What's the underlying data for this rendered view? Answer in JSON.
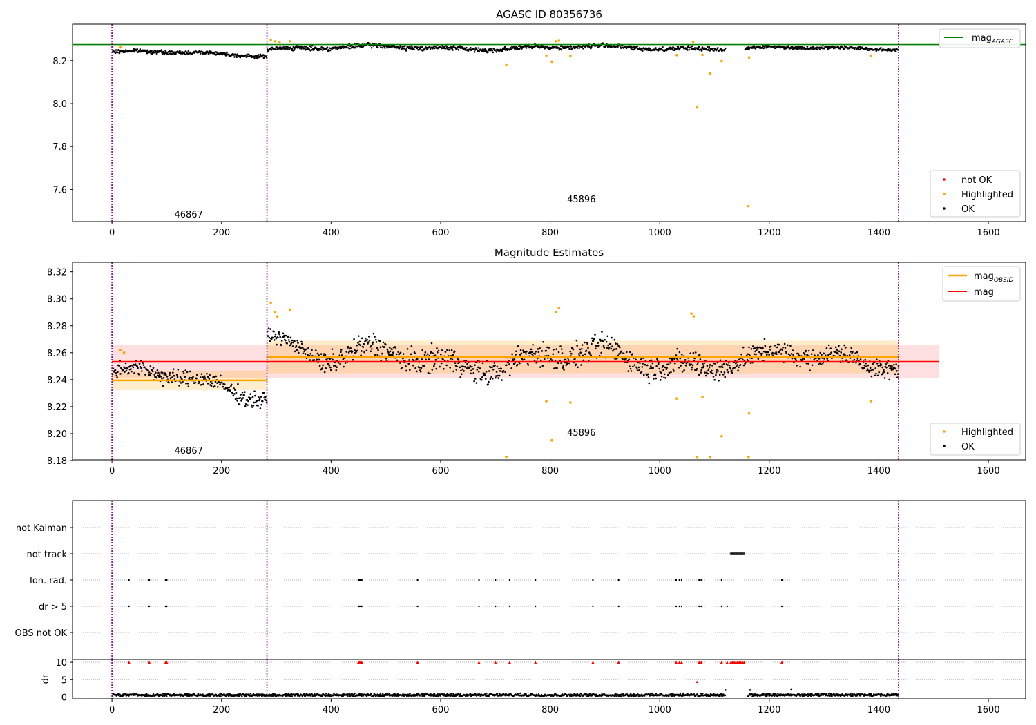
{
  "chart_data": [
    {
      "type": "scatter",
      "title": "AGASC ID 80356736",
      "xlim": [
        -72,
        1668
      ],
      "ylim": [
        7.45,
        8.37
      ],
      "xticks": [
        0,
        200,
        400,
        600,
        800,
        1000,
        1200,
        1400,
        1600
      ],
      "yticks": [
        7.6,
        7.8,
        8.0,
        8.2
      ],
      "obsid_boundaries": [
        0,
        283,
        1436
      ],
      "obsid_labels": [
        {
          "text": "46867",
          "x": 140,
          "y": 7.47
        },
        {
          "text": "45896",
          "x": 857,
          "y": 7.54
        }
      ],
      "mag_agasc": {
        "label": "mag",
        "subscript": "AGASC",
        "value": 8.275,
        "x_range": [
          -72,
          1668
        ]
      },
      "ok_segments": [
        {
          "x0": 0,
          "x1": 283,
          "base": 8.24,
          "trend": -0.012,
          "noise": 0.008
        },
        {
          "x0": 283,
          "x1": 1120,
          "base": 8.26,
          "trend": 0.0,
          "noise": 0.01
        },
        {
          "x0": 1155,
          "x1": 1436,
          "base": 8.258,
          "trend": 0.0,
          "noise": 0.007
        }
      ],
      "highlighted": [
        [
          16,
          8.262
        ],
        [
          290,
          8.297
        ],
        [
          298,
          8.29
        ],
        [
          306,
          8.285
        ],
        [
          325,
          8.29
        ],
        [
          720,
          8.182
        ],
        [
          793,
          8.224
        ],
        [
          803,
          8.195
        ],
        [
          810,
          8.29
        ],
        [
          816,
          8.293
        ],
        [
          837,
          8.223
        ],
        [
          1031,
          8.226
        ],
        [
          1061,
          8.287
        ],
        [
          1068,
          7.982
        ],
        [
          1078,
          8.227
        ],
        [
          1092,
          8.14
        ],
        [
          1113,
          8.198
        ],
        [
          1162,
          7.522
        ],
        [
          1163,
          8.215
        ],
        [
          1385,
          8.224
        ]
      ],
      "not_ok": [],
      "legends": [
        {
          "position": "top-right",
          "entries": [
            {
              "label": "mag",
              "subscript": "AGASC",
              "color": "#008000",
              "style": "line"
            }
          ]
        },
        {
          "position": "lower-right",
          "entries": [
            {
              "label": "not OK",
              "color": "#ff0000",
              "style": "dot"
            },
            {
              "label": "Highlighted",
              "color": "#ffa500",
              "style": "dot"
            },
            {
              "label": "OK",
              "color": "#000000",
              "style": "dot"
            }
          ]
        }
      ]
    },
    {
      "type": "scatter",
      "title": "Magnitude Estimates",
      "xlim": [
        -72,
        1668
      ],
      "ylim": [
        8.1805,
        8.327
      ],
      "xticks": [
        0,
        200,
        400,
        600,
        800,
        1000,
        1200,
        1400,
        1600
      ],
      "yticks": [
        8.18,
        8.2,
        8.22,
        8.24,
        8.26,
        8.28,
        8.3,
        8.32
      ],
      "obsid_boundaries": [
        0,
        283,
        1436
      ],
      "obsid_labels": [
        {
          "text": "46867",
          "x": 140,
          "y": 8.185
        },
        {
          "text": "45896",
          "x": 857,
          "y": 8.1985
        }
      ],
      "mag": {
        "label": "mag",
        "value": 8.2535,
        "band": [
          8.2412,
          8.2658
        ],
        "x_range": [
          0,
          1510
        ]
      },
      "mag_obsid": [
        {
          "x0": 0,
          "x1": 283,
          "value": 8.2395,
          "band": [
            8.2323,
            8.2467
          ]
        },
        {
          "x0": 283,
          "x1": 1436,
          "value": 8.2568,
          "band": [
            8.2447,
            8.2689
          ]
        }
      ],
      "ok_segments": [
        {
          "x0": 0,
          "x1": 283,
          "base": 8.246,
          "trend": -0.016,
          "noise": 0.006
        },
        {
          "x0": 283,
          "x1": 380,
          "base": 8.278,
          "trend": -0.022,
          "noise": 0.005
        },
        {
          "x0": 380,
          "x1": 1120,
          "base": 8.255,
          "trend": 0.0,
          "noise": 0.009
        },
        {
          "x0": 1120,
          "x1": 1436,
          "base": 8.255,
          "trend": 0.0,
          "noise": 0.007
        }
      ],
      "highlighted": [
        [
          16,
          8.262
        ],
        [
          22,
          8.26
        ],
        [
          290,
          8.297
        ],
        [
          298,
          8.29
        ],
        [
          302,
          8.287
        ],
        [
          325,
          8.292
        ],
        [
          793,
          8.224
        ],
        [
          803,
          8.195
        ],
        [
          810,
          8.29
        ],
        [
          816,
          8.293
        ],
        [
          837,
          8.223
        ],
        [
          1031,
          8.226
        ],
        [
          1058,
          8.289
        ],
        [
          1062,
          8.287
        ],
        [
          1078,
          8.227
        ],
        [
          1113,
          8.198
        ],
        [
          1163,
          8.215
        ],
        [
          1385,
          8.224
        ]
      ],
      "highlighted_below_axis": [
        720,
        1068,
        1092,
        1162
      ],
      "legends": [
        {
          "position": "top-right",
          "entries": [
            {
              "label": "mag",
              "subscript": "OBSID",
              "color": "#ffa500",
              "style": "line"
            },
            {
              "label": "mag",
              "color": "#ff0000",
              "style": "line"
            }
          ]
        },
        {
          "position": "lower-right",
          "entries": [
            {
              "label": "Highlighted",
              "color": "#ffa500",
              "style": "dot"
            },
            {
              "label": "OK",
              "color": "#000000",
              "style": "dot"
            }
          ]
        }
      ]
    },
    {
      "type": "scatter",
      "title": "",
      "xlim": [
        -72,
        1668
      ],
      "categories": [
        "not Kalman",
        "not track",
        "Ion. rad.",
        "dr > 5",
        "OBS not OK"
      ],
      "obsid_boundaries": [
        0,
        283,
        1436
      ],
      "flags": {
        "not Kalman": [],
        "not track": [
          [
            1130,
            1155
          ]
        ],
        "Ion. rad.": [
          31,
          68,
          98,
          100,
          450,
          452,
          454,
          456,
          558,
          670,
          700,
          726,
          773,
          878,
          925,
          1030,
          1036,
          1040,
          1072,
          1076,
          1113,
          1223
        ],
        "dr > 5": [
          31,
          68,
          98,
          100,
          450,
          452,
          454,
          456,
          558,
          670,
          700,
          726,
          773,
          878,
          925,
          1030,
          1036,
          1040,
          1072,
          1076,
          1113,
          1123,
          1223
        ],
        "OBS not OK": []
      }
    },
    {
      "type": "scatter",
      "xlabel": "",
      "ylabel": "dr",
      "xlim": [
        -72,
        1668
      ],
      "ylim": [
        -0.5,
        10.8
      ],
      "xticks": [
        0,
        200,
        400,
        600,
        800,
        1000,
        1200,
        1400,
        1600
      ],
      "yticks": [
        0,
        5,
        10
      ],
      "obsid_boundaries": [
        0,
        283,
        1436
      ],
      "ok_segments": [
        {
          "x0": 0,
          "x1": 1120,
          "base": 0.6,
          "noise": 0.25
        },
        {
          "x0": 1160,
          "x1": 1436,
          "base": 0.6,
          "noise": 0.25
        }
      ],
      "dr_red": [
        [
          1068,
          4.3
        ]
      ],
      "dr_outliers": [
        [
          1120,
          2.0
        ],
        [
          1165,
          2.0
        ],
        [
          1240,
          2.1
        ]
      ],
      "clipped_at_10": [
        31,
        68,
        98,
        100,
        450,
        452,
        454,
        456,
        558,
        670,
        700,
        726,
        773,
        878,
        925,
        1030,
        1036,
        1040,
        1072,
        1076,
        1113,
        1123,
        1130,
        1133,
        1136,
        1139,
        1142,
        1145,
        1148,
        1151,
        1154,
        1223
      ]
    }
  ]
}
